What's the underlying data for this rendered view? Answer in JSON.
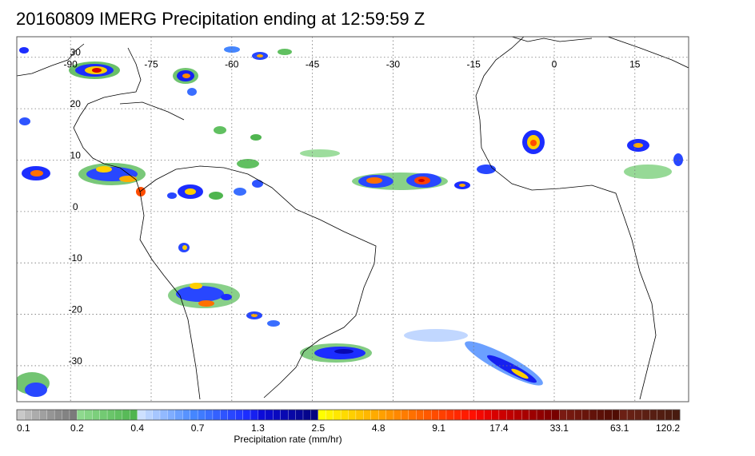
{
  "title": "20160809 IMERG Precipitation ending at 12:59:59 Z",
  "map": {
    "lon_range": [
      -100,
      25
    ],
    "lat_range": [
      -37,
      34
    ],
    "lon_ticks": [
      -90,
      -75,
      -60,
      -45,
      -30,
      -15,
      0,
      15
    ],
    "lat_ticks": [
      30,
      20,
      10,
      0,
      -10,
      -20,
      -30
    ],
    "lon_tick_labels": [
      "-90",
      "-75",
      "-60",
      "-45",
      "-30",
      "-15",
      "0",
      "15"
    ],
    "lat_tick_labels": [
      "30",
      "20",
      "10",
      "0",
      "-10",
      "-20",
      "-30"
    ],
    "grid": true,
    "grid_style": "dotted",
    "background": "#ffffff",
    "coastline_color": "#000000"
  },
  "colorbar": {
    "label": "Precipitation rate (mm/hr)",
    "tick_labels": [
      "0.1",
      "0.2",
      "0.4",
      "0.7",
      "1.3",
      "2.5",
      "4.8",
      "9.1",
      "17.4",
      "33.1",
      "63.1",
      "120.2"
    ],
    "segments_per_tick": 8,
    "color_groups": [
      [
        "#c8c8c8",
        "#b9b9b9",
        "#acacac",
        "#a0a0a0",
        "#959595",
        "#8b8b8b",
        "#838383",
        "#7b7b7b"
      ],
      [
        "#8ed98e",
        "#85d485",
        "#7ccf7c",
        "#73ca73",
        "#6ac56a",
        "#61c061",
        "#58ba58",
        "#4fb54f"
      ],
      [
        "#cde0ff",
        "#b9d3ff",
        "#a6c6ff",
        "#92b9ff",
        "#7fadff",
        "#6ba0ff",
        "#5893ff",
        "#4586ff"
      ],
      [
        "#3f7bff",
        "#3a6eff",
        "#3461ff",
        "#2e54ff",
        "#2847ff",
        "#223aff",
        "#1c2dff",
        "#1620f0"
      ],
      [
        "#0b0bd9",
        "#0a0acc",
        "#0909bf",
        "#0808b2",
        "#0707a6",
        "#060699",
        "#05058c",
        "#040480"
      ],
      [
        "#ffff00",
        "#fff300",
        "#ffe700",
        "#ffdb00",
        "#ffcf00",
        "#ffc300",
        "#ffb700",
        "#ffab00"
      ],
      [
        "#ffa000",
        "#ff9400",
        "#ff8800",
        "#ff7c00",
        "#ff7000",
        "#ff6400",
        "#ff5800",
        "#ff4c00"
      ],
      [
        "#ff4000",
        "#ff3400",
        "#ff2800",
        "#ff1c00",
        "#ff1000",
        "#f40800",
        "#e60400",
        "#d80000"
      ],
      [
        "#cc0000",
        "#c00000",
        "#b40000",
        "#a80000",
        "#9c0000",
        "#900000",
        "#840000",
        "#780000"
      ],
      [
        "#7a1a12",
        "#74180f",
        "#6e160d",
        "#68140b",
        "#621209",
        "#5c1007",
        "#560e05",
        "#500c03"
      ],
      [
        "#6b1f14",
        "#662014",
        "#612014",
        "#5c1f13",
        "#571e12",
        "#521d11",
        "#4d1c10",
        "#481b0f"
      ]
    ]
  }
}
